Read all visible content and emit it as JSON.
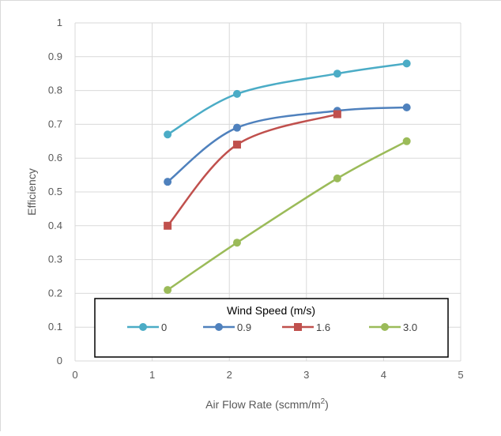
{
  "chart_data": {
    "type": "line",
    "xlabel": "Air Flow Rate (scmm/m",
    "xlabel_sup": "2",
    "xlabel_end": ")",
    "ylabel": "Efficiency",
    "xlim": [
      0,
      5
    ],
    "ylim": [
      0,
      1
    ],
    "x_ticks": [
      "0",
      "1",
      "2",
      "3",
      "4",
      "5"
    ],
    "y_ticks": [
      "0",
      "0.1",
      "0.2",
      "0.3",
      "0.4",
      "0.5",
      "0.6",
      "0.7",
      "0.8",
      "0.9",
      "1"
    ],
    "grid": true,
    "legend_title": "Wind Speed (m/s)",
    "legend_position": "bottom",
    "series": [
      {
        "name": "0",
        "color": "#4bacc6",
        "marker": "circle",
        "x": [
          1.2,
          2.1,
          3.4,
          4.3
        ],
        "y": [
          0.67,
          0.79,
          0.85,
          0.88
        ]
      },
      {
        "name": "0.9",
        "color": "#4f81bd",
        "marker": "circle",
        "x": [
          1.2,
          2.1,
          3.4,
          4.3
        ],
        "y": [
          0.53,
          0.69,
          0.74,
          0.75
        ]
      },
      {
        "name": "1.6",
        "color": "#c0504d",
        "marker": "square",
        "x": [
          1.2,
          2.1,
          3.4
        ],
        "y": [
          0.4,
          0.64,
          0.73
        ]
      },
      {
        "name": "3.0",
        "color": "#9bbb59",
        "marker": "circle",
        "x": [
          1.2,
          2.1,
          3.4,
          4.3
        ],
        "y": [
          0.21,
          0.35,
          0.54,
          0.65
        ]
      }
    ]
  }
}
